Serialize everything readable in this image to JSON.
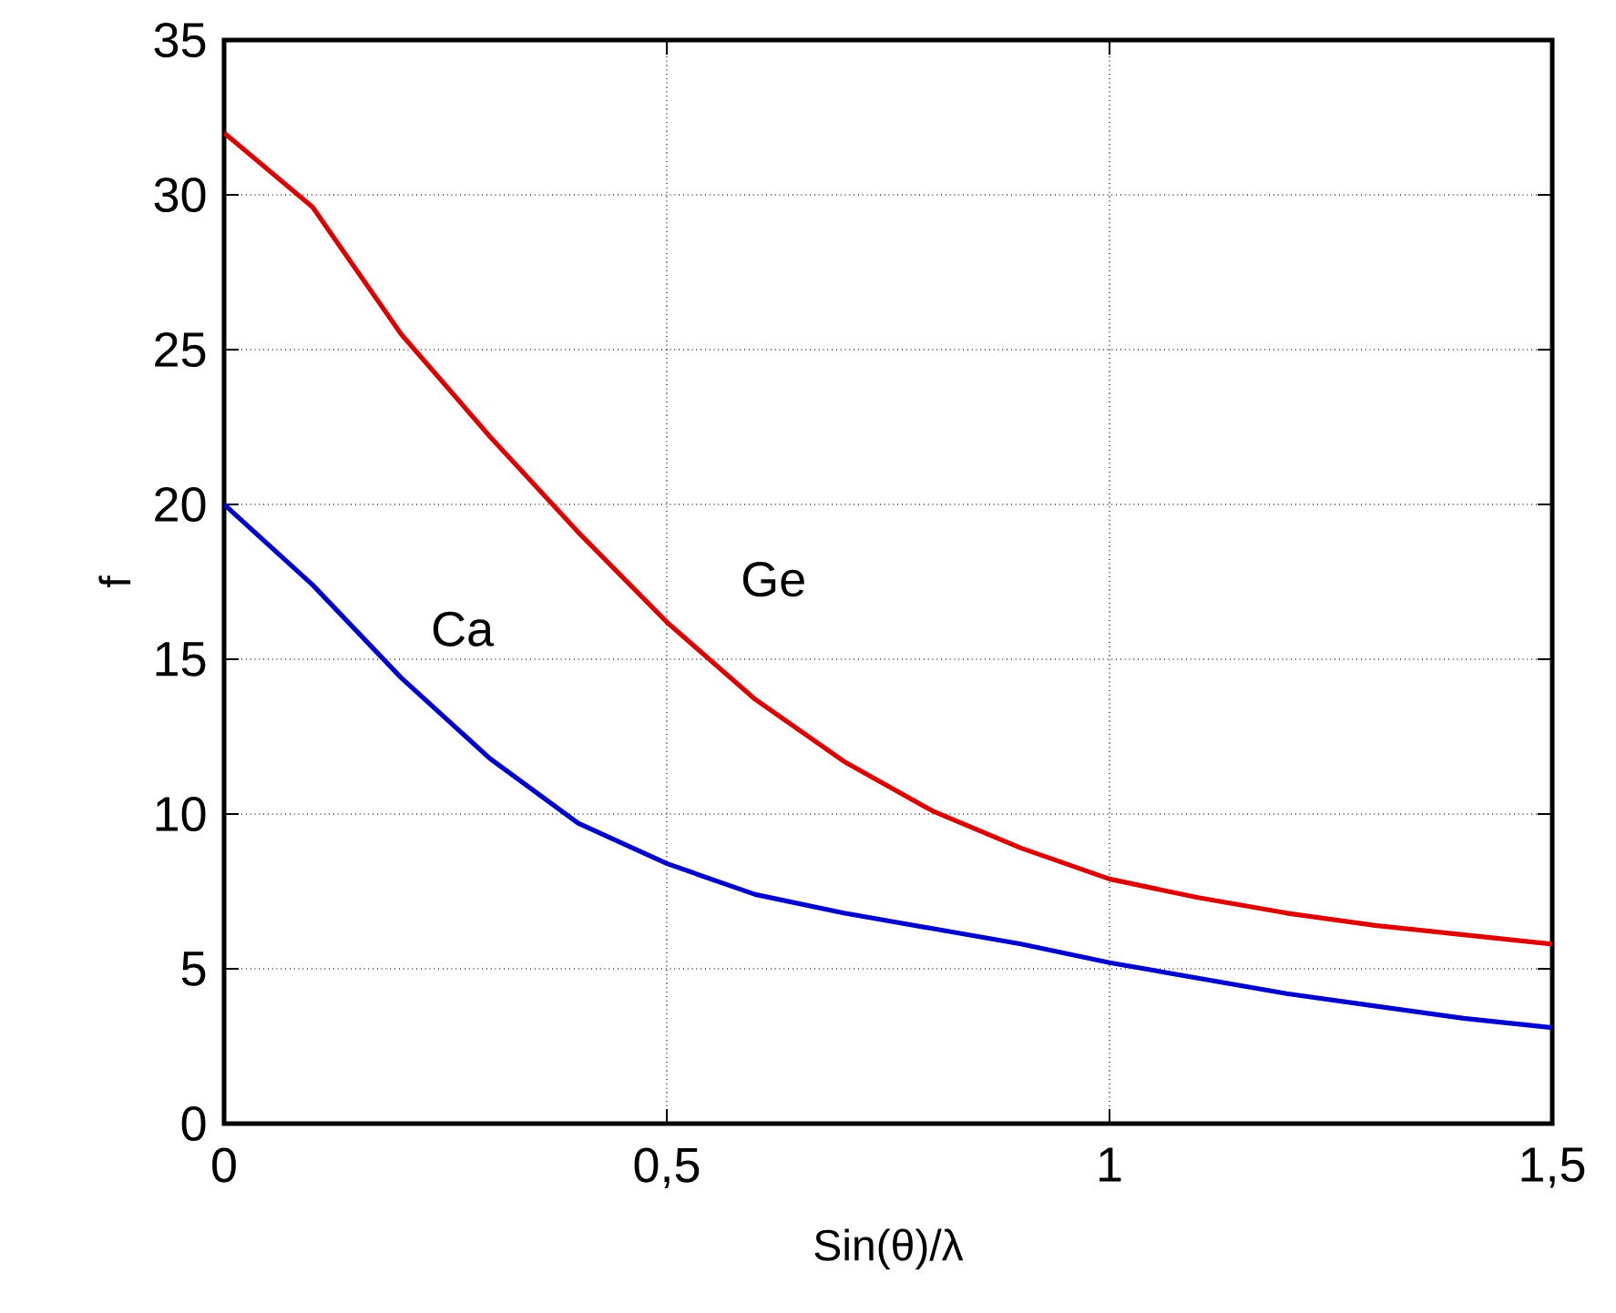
{
  "chart_data": {
    "type": "line",
    "xlabel": "Sin(θ)/λ",
    "ylabel": "f",
    "x": [
      0,
      0.1,
      0.2,
      0.3,
      0.4,
      0.5,
      0.6,
      0.7,
      0.8,
      0.9,
      1.0,
      1.1,
      1.2,
      1.3,
      1.4,
      1.5
    ],
    "series": [
      {
        "name": "Ge",
        "color": "#dd0000",
        "values": [
          32,
          29.6,
          25.5,
          22.2,
          19.1,
          16.2,
          13.7,
          11.7,
          10.1,
          8.9,
          7.9,
          7.3,
          6.8,
          6.4,
          6.1,
          5.8
        ]
      },
      {
        "name": "Ca",
        "color": "#0000cc",
        "values": [
          20,
          17.4,
          14.4,
          11.8,
          9.7,
          8.4,
          7.4,
          6.8,
          6.3,
          5.8,
          5.2,
          4.7,
          4.2,
          3.8,
          3.4,
          3.1
        ]
      }
    ],
    "xlim": [
      0,
      1.5
    ],
    "ylim": [
      0,
      35
    ],
    "xticks": [
      0,
      {
        "value": 0.5,
        "label": "0,5"
      },
      1,
      {
        "value": 1.5,
        "label": "1,5"
      }
    ],
    "yticks": [
      0,
      5,
      10,
      15,
      20,
      25,
      30,
      35
    ],
    "grid": true,
    "marker": "none",
    "line_style": "solid",
    "legend": false
  }
}
